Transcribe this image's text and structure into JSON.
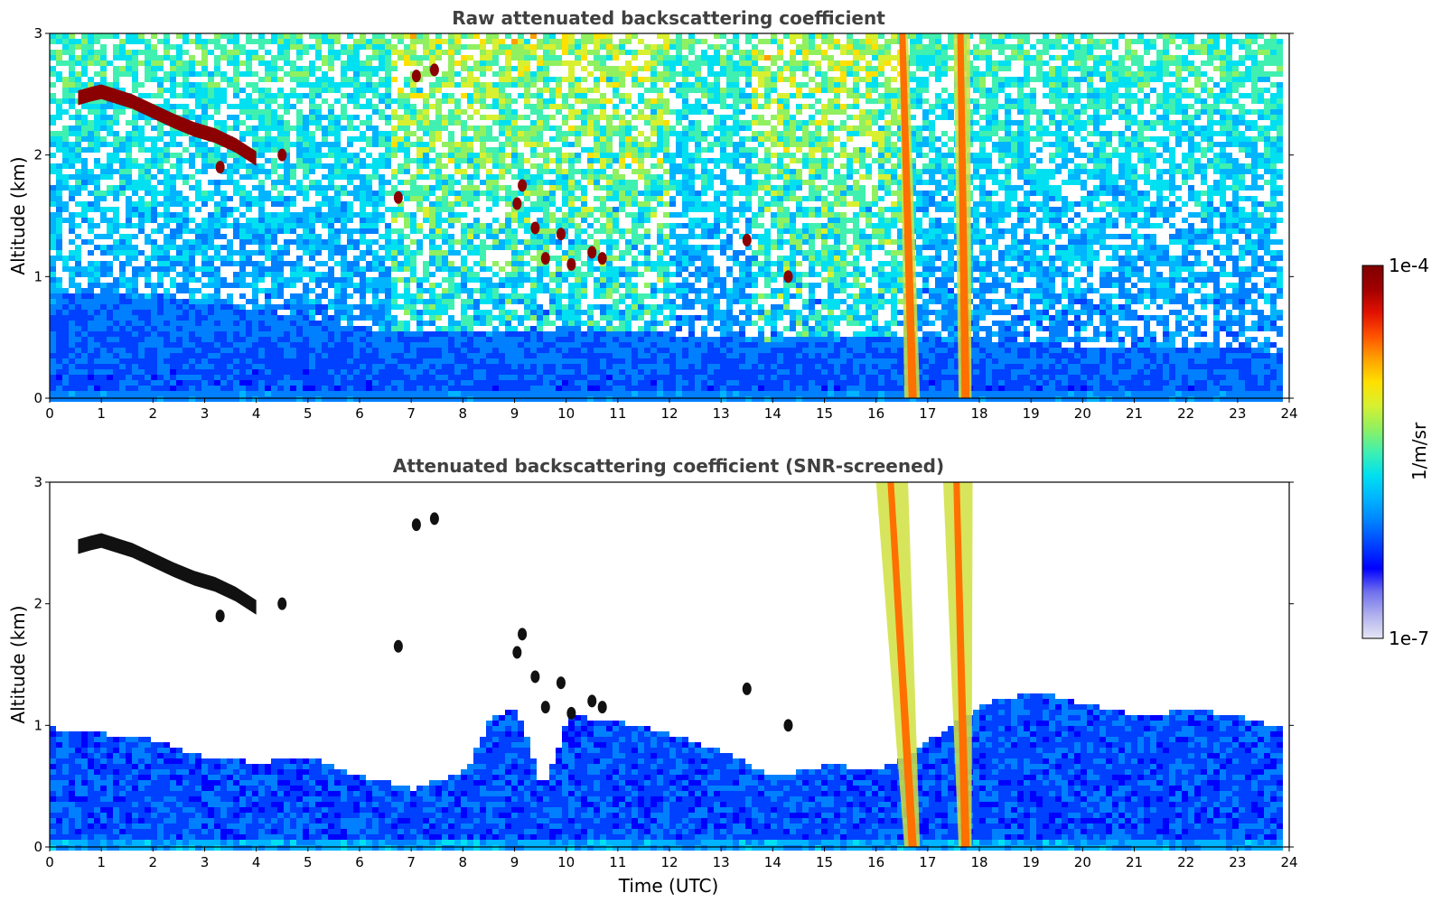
{
  "colors": {
    "colormap": [
      "#e6e6f5",
      "#b0b0ee",
      "#7070ee",
      "#0000ff",
      "#0040ff",
      "#0080ff",
      "#00b4ff",
      "#00e0f0",
      "#40f0b0",
      "#90f060",
      "#d8f030",
      "#ffe000",
      "#ffa000",
      "#ff5000",
      "#e01000",
      "#a00000",
      "#800000"
    ],
    "cloud_core": "#8b0000",
    "cloud_screened": "#111111",
    "plume_core": "#ff7000",
    "plume_edge": "#d0e040",
    "frame": "#000000",
    "title_text": "#404040"
  },
  "chart_data": [
    {
      "type": "heatmap",
      "title": "Raw attenuated backscattering coefficient",
      "xlabel": "",
      "ylabel": "Altitude (km)",
      "xlim": [
        0,
        24
      ],
      "ylim": [
        0,
        3
      ],
      "xticks": [
        "0",
        "1",
        "2",
        "3",
        "4",
        "5",
        "6",
        "7",
        "8",
        "9",
        "10",
        "11",
        "12",
        "13",
        "14",
        "15",
        "16",
        "17",
        "18",
        "19",
        "20",
        "21",
        "22",
        "23",
        "24"
      ],
      "yticks": [
        "0",
        "1",
        "2",
        "3"
      ],
      "screened": false,
      "data_end_time": 23.8,
      "boundary_layer_top_km": [
        [
          0,
          0.9
        ],
        [
          2,
          0.85
        ],
        [
          4,
          0.75
        ],
        [
          6,
          0.6
        ],
        [
          8,
          0.55
        ],
        [
          10,
          0.6
        ],
        [
          12,
          0.55
        ],
        [
          14,
          0.5
        ],
        [
          16,
          0.55
        ],
        [
          18,
          0.5
        ],
        [
          20,
          0.45
        ],
        [
          22,
          0.45
        ],
        [
          23.8,
          0.4
        ]
      ],
      "cloud_layer": {
        "points": [
          [
            0.55,
            2.47
          ],
          [
            0.8,
            2.5
          ],
          [
            1.0,
            2.52
          ],
          [
            1.3,
            2.48
          ],
          [
            1.6,
            2.44
          ],
          [
            2.0,
            2.36
          ],
          [
            2.4,
            2.28
          ],
          [
            2.8,
            2.21
          ],
          [
            3.2,
            2.16
          ],
          [
            3.6,
            2.08
          ],
          [
            4.0,
            1.97
          ]
        ],
        "thickness_km": 0.12
      },
      "cloud_patches": [
        [
          6.75,
          1.65
        ],
        [
          7.1,
          2.65
        ],
        [
          7.45,
          2.7
        ],
        [
          9.05,
          1.6
        ],
        [
          9.15,
          1.75
        ],
        [
          9.4,
          1.4
        ],
        [
          9.6,
          1.15
        ],
        [
          9.9,
          1.35
        ],
        [
          10.1,
          1.1
        ],
        [
          10.5,
          1.2
        ],
        [
          10.7,
          1.15
        ],
        [
          13.5,
          1.3
        ],
        [
          14.3,
          1.0
        ],
        [
          3.3,
          1.9
        ],
        [
          4.5,
          2.0
        ]
      ],
      "plumes": [
        {
          "x_start": 16.45,
          "x_end": 16.55,
          "x_start_bottom": 16.55,
          "x_end_bottom": 16.85
        },
        {
          "x_start": 17.5,
          "x_end": 17.75,
          "x_start_bottom": 17.6,
          "x_end_bottom": 17.85
        }
      ],
      "colorbar": {
        "label": "1/m/sr",
        "min_label": "1e-7",
        "max_label": "1e-4"
      }
    },
    {
      "type": "heatmap",
      "title": "Attenuated backscattering coefficient (SNR-screened)",
      "xlabel": "Time (UTC)",
      "ylabel": "Altitude (km)",
      "xlim": [
        0,
        24
      ],
      "ylim": [
        0,
        3
      ],
      "xticks": [
        "0",
        "1",
        "2",
        "3",
        "4",
        "5",
        "6",
        "7",
        "8",
        "9",
        "10",
        "11",
        "12",
        "13",
        "14",
        "15",
        "16",
        "17",
        "18",
        "19",
        "20",
        "21",
        "22",
        "23",
        "24"
      ],
      "yticks": [
        "0",
        "1",
        "2",
        "3"
      ],
      "screened": true,
      "data_end_time": 23.8,
      "boundary_layer_top_km": [
        [
          0,
          1.0
        ],
        [
          1,
          0.95
        ],
        [
          2,
          0.9
        ],
        [
          3,
          0.75
        ],
        [
          4,
          0.72
        ],
        [
          5,
          0.75
        ],
        [
          6,
          0.6
        ],
        [
          7,
          0.5
        ],
        [
          8,
          0.65
        ],
        [
          8.5,
          1.1
        ],
        [
          9,
          1.15
        ],
        [
          9.5,
          0.5
        ],
        [
          10,
          1.1
        ],
        [
          11,
          1.05
        ],
        [
          12,
          0.95
        ],
        [
          13,
          0.8
        ],
        [
          14,
          0.6
        ],
        [
          15,
          0.7
        ],
        [
          16,
          0.65
        ],
        [
          17,
          0.9
        ],
        [
          18,
          1.2
        ],
        [
          19,
          1.3
        ],
        [
          20,
          1.2
        ],
        [
          21,
          1.1
        ],
        [
          22,
          1.15
        ],
        [
          23,
          1.1
        ],
        [
          23.8,
          1.0
        ]
      ],
      "cloud_layer": {
        "points": [
          [
            0.55,
            2.47
          ],
          [
            0.8,
            2.5
          ],
          [
            1.0,
            2.52
          ],
          [
            1.3,
            2.48
          ],
          [
            1.6,
            2.44
          ],
          [
            2.0,
            2.36
          ],
          [
            2.4,
            2.28
          ],
          [
            2.8,
            2.21
          ],
          [
            3.2,
            2.16
          ],
          [
            3.6,
            2.08
          ],
          [
            4.0,
            1.97
          ]
        ],
        "thickness_km": 0.12
      },
      "cloud_patches": [
        [
          6.75,
          1.65
        ],
        [
          7.1,
          2.65
        ],
        [
          7.45,
          2.7
        ],
        [
          9.05,
          1.6
        ],
        [
          9.15,
          1.75
        ],
        [
          9.4,
          1.4
        ],
        [
          9.6,
          1.15
        ],
        [
          9.9,
          1.35
        ],
        [
          10.1,
          1.1
        ],
        [
          10.5,
          1.2
        ],
        [
          10.7,
          1.15
        ],
        [
          13.5,
          1.3
        ],
        [
          14.3,
          1.0
        ],
        [
          3.3,
          1.9
        ],
        [
          4.5,
          2.0
        ]
      ],
      "plumes": [
        {
          "x_start": 16.0,
          "x_end": 16.55,
          "x_start_bottom": 16.55,
          "x_end_bottom": 16.85
        },
        {
          "x_start": 17.3,
          "x_end": 17.8,
          "x_start_bottom": 17.6,
          "x_end_bottom": 17.85
        }
      ],
      "colorbar": {
        "label": "1/m/sr",
        "min_label": "1e-7",
        "max_label": "1e-4"
      }
    }
  ]
}
